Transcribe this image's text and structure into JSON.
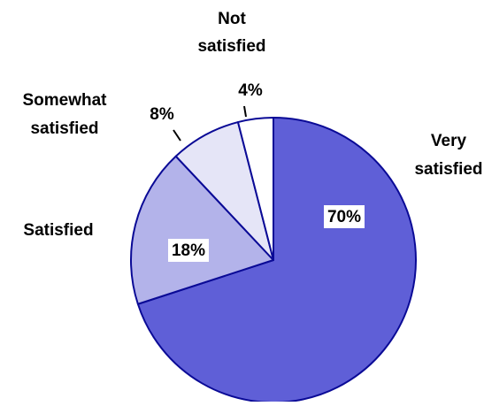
{
  "chart_data": {
    "type": "pie",
    "title": "",
    "slices": [
      {
        "label": "Very satisfied",
        "label_lines": [
          "Very",
          "satisfied"
        ],
        "value": 70,
        "value_label": "70%",
        "color": "#5f5fd7"
      },
      {
        "label": "Satisfied",
        "label_lines": [
          "Satisfied"
        ],
        "value": 18,
        "value_label": "18%",
        "color": "#b3b3ea"
      },
      {
        "label": "Somewhat satisfied",
        "label_lines": [
          "Somewhat",
          "satisfied"
        ],
        "value": 8,
        "value_label": "8%",
        "color": "#e5e5f7"
      },
      {
        "label": "Not satisfied",
        "label_lines": [
          "Not",
          "satisfied"
        ],
        "value": 4,
        "value_label": "4%",
        "color": "#ffffff"
      }
    ],
    "start_angle_deg": 0,
    "direction": "clockwise",
    "edge_color": "#0a0a96",
    "legend": "none"
  }
}
